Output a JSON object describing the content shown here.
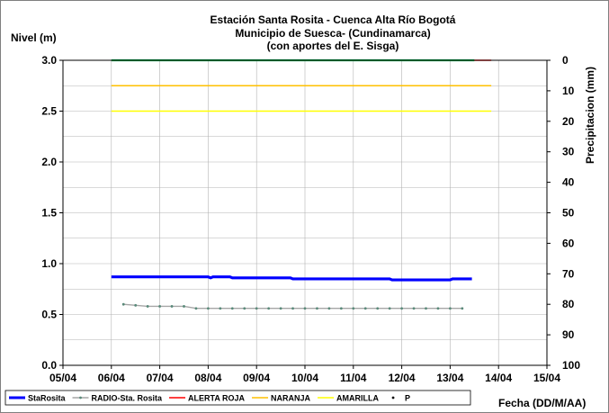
{
  "chart_data": {
    "type": "line",
    "title": [
      "Estación Santa Rosita - Cuenca Alta Río Bogotá",
      "Municipio de Suesca- (Cundinamarca)",
      "(con aportes del  E. Sisga)"
    ],
    "ylabel": "Nivel (m)",
    "y2label": "Precipitacion (mm)",
    "xlabel": "Fecha (DD/M/AA)",
    "ylim": [
      0,
      3
    ],
    "y2lim": [
      0,
      100
    ],
    "y2_inverted": true,
    "xlim": [
      5,
      15
    ],
    "yticks": [
      "0.0",
      "0.5",
      "1.0",
      "1.5",
      "2.0",
      "2.5",
      "3.0"
    ],
    "y2ticks": [
      "0",
      "10",
      "20",
      "30",
      "40",
      "50",
      "60",
      "70",
      "80",
      "90",
      "100"
    ],
    "xticks": [
      "05/04",
      "06/04",
      "07/04",
      "08/04",
      "09/04",
      "10/04",
      "11/04",
      "12/04",
      "13/04",
      "14/04",
      "15/04"
    ],
    "grid": true,
    "legend_position": "bottom",
    "series": [
      {
        "name": "StaRosita",
        "color": "#0000ff",
        "style": "thick-line",
        "x": [
          6.0,
          8.0,
          8.05,
          8.1,
          8.45,
          8.5,
          9.7,
          9.75,
          11.75,
          11.8,
          13.0,
          13.05,
          13.45
        ],
        "y": [
          0.87,
          0.87,
          0.86,
          0.87,
          0.87,
          0.86,
          0.86,
          0.85,
          0.85,
          0.84,
          0.84,
          0.85,
          0.85
        ]
      },
      {
        "name": "RADIO-Sta. Rosita",
        "color": "#a6a6a6",
        "style": "line-markers",
        "x": [
          6.25,
          6.5,
          6.75,
          7.0,
          7.25,
          7.5,
          7.75,
          8.0,
          8.25,
          8.5,
          8.75,
          9.0,
          9.25,
          9.5,
          9.75,
          10.0,
          10.25,
          10.5,
          10.75,
          11.0,
          11.25,
          11.5,
          11.75,
          12.0,
          12.25,
          12.5,
          12.75,
          13.0,
          13.25
        ],
        "y": [
          0.6,
          0.59,
          0.58,
          0.58,
          0.58,
          0.58,
          0.56,
          0.56,
          0.56,
          0.56,
          0.56,
          0.56,
          0.56,
          0.56,
          0.56,
          0.56,
          0.56,
          0.56,
          0.56,
          0.56,
          0.56,
          0.56,
          0.56,
          0.56,
          0.56,
          0.56,
          0.56,
          0.56,
          0.56
        ]
      },
      {
        "name": "ALERTA ROJA",
        "color": "#ff0000",
        "style": "line",
        "x": [
          6.0,
          13.85
        ],
        "y": [
          3.0,
          3.0
        ]
      },
      {
        "name": "NARANJA",
        "color": "#ffc000",
        "style": "line",
        "x": [
          6.0,
          13.85
        ],
        "y": [
          2.75,
          2.75
        ]
      },
      {
        "name": "AMARILLA",
        "color": "#ffff00",
        "style": "line",
        "x": [
          6.0,
          13.85
        ],
        "y": [
          2.5,
          2.5
        ]
      },
      {
        "name": "P",
        "color": "#00b050",
        "style": "dotted-secondary",
        "x": [
          6.0,
          13.5
        ],
        "y2": [
          0,
          0
        ]
      }
    ]
  }
}
